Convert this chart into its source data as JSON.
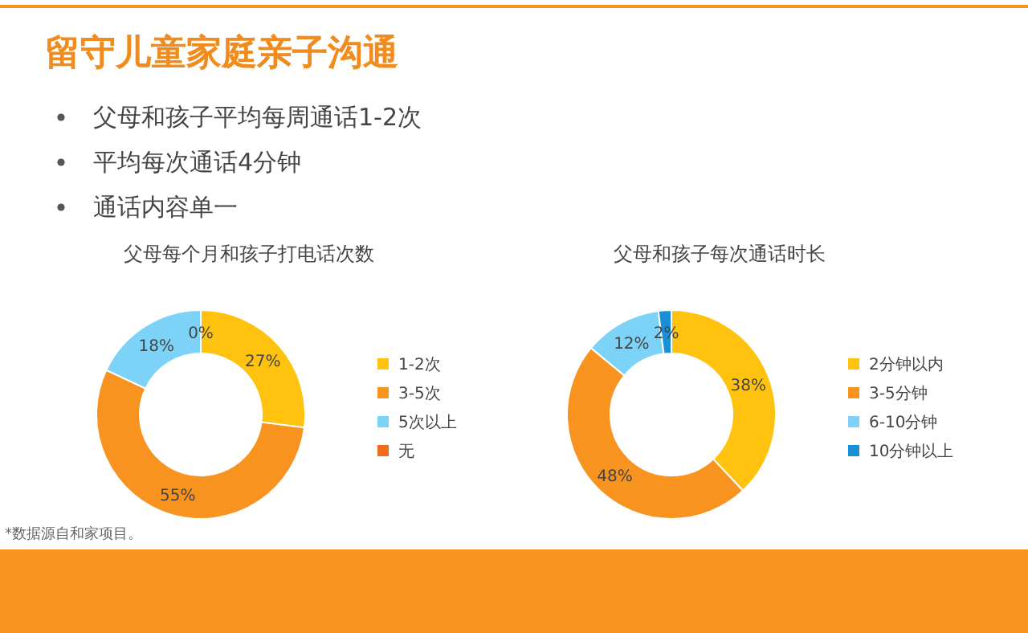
{
  "chart_data": [
    {
      "type": "other",
      "title": "留守儿童家庭亲子沟通",
      "annotations": [
        "父母和孩子平均每周通话1-2次",
        "平均每次通话4分钟",
        "通话内容单一",
        "*数据源自和家项目。"
      ]
    },
    {
      "type": "donut",
      "title": "父母每个月和孩子打电话次数",
      "categories": [
        "1-2次",
        "3-5次",
        "5次以上",
        "无"
      ],
      "values": [
        27,
        55,
        18,
        0
      ],
      "colors": [
        "#ffc20e",
        "#f7931e",
        "#7dd3f7",
        "#f26b1d"
      ],
      "value_labels": [
        "27%",
        "55%",
        "18%",
        "0%"
      ],
      "legend": "right"
    },
    {
      "type": "donut",
      "title": "父母和孩子每次通话时长",
      "categories": [
        "2分钟以内",
        "3-5分钟",
        "6-10分钟",
        "10分钟以上"
      ],
      "values": [
        38,
        48,
        12,
        2
      ],
      "colors": [
        "#ffc20e",
        "#f7931e",
        "#7dd3f7",
        "#1b8ed8"
      ],
      "value_labels": [
        "38%",
        "48%",
        "12%",
        "2%"
      ],
      "legend": "right"
    }
  ]
}
